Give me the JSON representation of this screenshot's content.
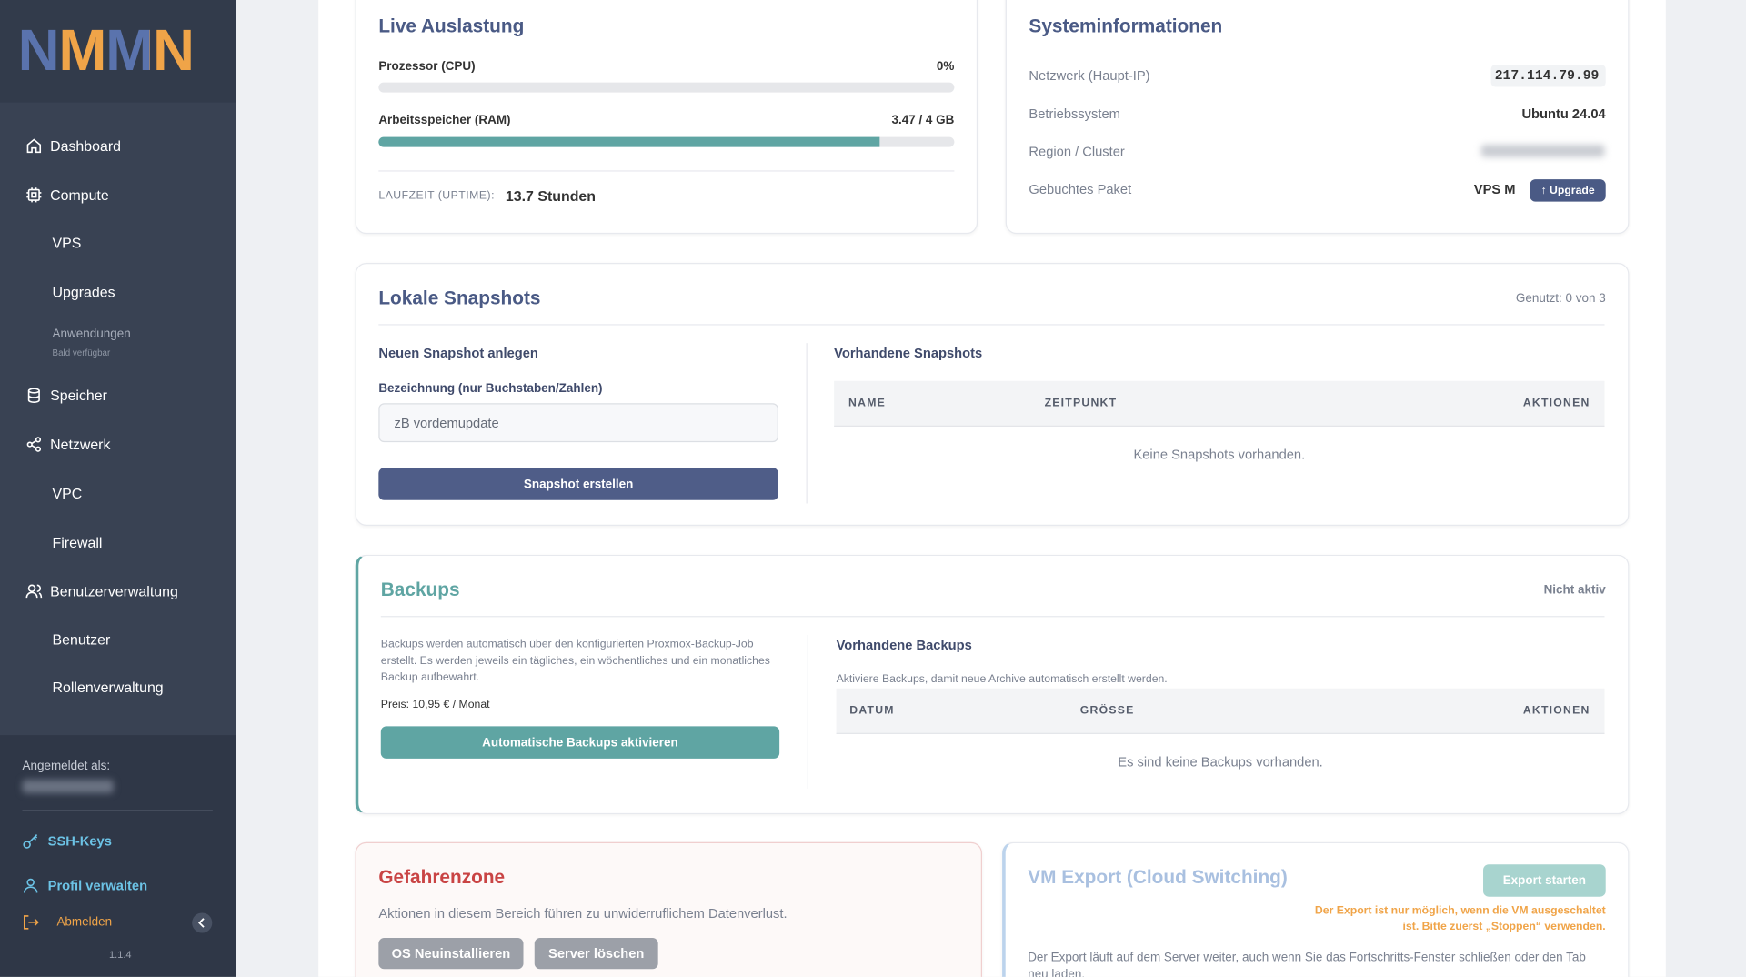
{
  "sidebar": {
    "logo": "NMMN",
    "nav": [
      {
        "label": "Dashboard"
      },
      {
        "label": "Compute"
      },
      {
        "label": "VPS"
      },
      {
        "label": "Upgrades"
      },
      {
        "label": "Anwendungen",
        "note": "Bald verfügbar"
      },
      {
        "label": "Speicher"
      },
      {
        "label": "Netzwerk"
      },
      {
        "label": "VPC"
      },
      {
        "label": "Firewall"
      },
      {
        "label": "Benutzerverwaltung"
      },
      {
        "label": "Benutzer"
      },
      {
        "label": "Rollenverwaltung"
      }
    ],
    "footer": {
      "logged_in_label": "Angemeldet als:",
      "links": [
        "SSH-Keys",
        "Profil verwalten",
        "Abmelden"
      ],
      "version": "1.1.4"
    }
  },
  "live": {
    "title": "Live Auslastung",
    "cpu_label": "Prozessor (CPU)",
    "cpu_value": "0%",
    "ram_label": "Arbeitsspeicher (RAM)",
    "ram_value": "3.47 / 4 GB",
    "uptime_label": "LAUFZEIT (UPTIME):",
    "uptime_value": "13.7 Stunden"
  },
  "system": {
    "title": "Systeminformationen",
    "rows": [
      {
        "label": "Netzwerk (Haupt-IP)",
        "value": "217.114.79.99"
      },
      {
        "label": "Betriebssystem",
        "value": "Ubuntu 24.04"
      },
      {
        "label": "Region / Cluster"
      },
      {
        "label": "Gebuchtes Paket",
        "value": "VPS M"
      }
    ],
    "upgrade_button": "↑ Upgrade"
  },
  "snapshots": {
    "title": "Lokale Snapshots",
    "usage": "Genutzt: 0 von 3",
    "new_heading": "Neuen Snapshot anlegen",
    "field_label": "Bezeichnung (nur Buchstaben/Zahlen)",
    "placeholder": "zB vordemupdate",
    "create_button": "Snapshot erstellen",
    "list_heading": "Vorhandene Snapshots",
    "columns": [
      "NAME",
      "ZEITPUNKT",
      "AKTIONEN"
    ],
    "empty": "Keine Snapshots vorhanden."
  },
  "backups": {
    "title": "Backups",
    "status": "Nicht aktiv",
    "description": "Backups werden automatisch über den konfigurierten Proxmox-Backup-Job erstellt. Es werden jeweils ein tägliches, ein wöchentliches und ein monatliches Backup aufbewahrt.",
    "price": "Preis: 10,95 € / Monat",
    "activate_button": "Automatische Backups aktivieren",
    "list_heading": "Vorhandene Backups",
    "hint": "Aktiviere Backups, damit neue Archive automatisch erstellt werden.",
    "columns": [
      "DATUM",
      "GRÖSSE",
      "AKTIONEN"
    ],
    "empty": "Es sind keine Backups vorhanden."
  },
  "danger": {
    "title": "Gefahrenzone",
    "text": "Aktionen in diesem Bereich führen zu unwiderruflichem Datenverlust.",
    "buttons": [
      "OS Neuinstallieren",
      "Server löschen"
    ]
  },
  "export": {
    "title": "VM Export (Cloud Switching)",
    "button": "Export starten",
    "warning": [
      "Der Export ist nur möglich, wenn die VM ausgeschaltet",
      "ist. Bitte zuerst „Stoppen“ verwenden."
    ],
    "text": "Der Export läuft auf dem Server weiter, auch wenn Sie das Fortschritts-Fenster schließen oder den Tab neu laden."
  }
}
